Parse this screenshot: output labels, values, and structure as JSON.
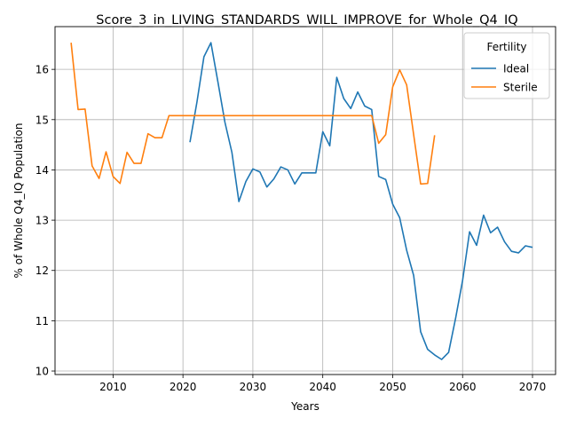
{
  "chart_data": {
    "type": "line",
    "title": "Score_3_in_LIVING_STANDARDS_WILL_IMPROVE_for_Whole_Q4_IQ",
    "xlabel": "Years",
    "ylabel": "% of Whole Q4_IQ Population",
    "xlim": [
      2001.7,
      2073.3
    ],
    "ylim": [
      9.93,
      16.85
    ],
    "xticks": [
      2010,
      2020,
      2030,
      2040,
      2050,
      2060,
      2070
    ],
    "yticks": [
      10,
      11,
      12,
      13,
      14,
      15,
      16
    ],
    "grid": true,
    "legend": {
      "title": "Fertility",
      "placement": "top-right"
    },
    "series": [
      {
        "name": "Ideal",
        "color": "#1f77b4",
        "x": [
          2021,
          2022,
          2023,
          2024,
          2025,
          2026,
          2027,
          2028,
          2029,
          2030,
          2031,
          2032,
          2033,
          2034,
          2035,
          2036,
          2037,
          2038,
          2039,
          2040,
          2041,
          2042,
          2043,
          2044,
          2045,
          2046,
          2047,
          2048,
          2049,
          2050,
          2051,
          2052,
          2053,
          2054,
          2055,
          2056,
          2057,
          2058,
          2059,
          2060,
          2061,
          2062,
          2063,
          2064,
          2065,
          2066,
          2067,
          2068,
          2069,
          2070
        ],
        "y": [
          14.55,
          15.35,
          16.25,
          16.53,
          15.75,
          14.95,
          14.35,
          13.37,
          13.77,
          14.02,
          13.96,
          13.66,
          13.82,
          14.06,
          14.0,
          13.72,
          13.94,
          13.94,
          13.94,
          14.76,
          14.48,
          15.84,
          15.42,
          15.22,
          15.55,
          15.27,
          15.2,
          13.87,
          13.81,
          13.32,
          13.05,
          12.4,
          11.9,
          10.78,
          10.43,
          10.32,
          10.23,
          10.37,
          11.05,
          11.8,
          12.77,
          12.5,
          13.1,
          12.75,
          12.86,
          12.57,
          12.38,
          12.35,
          12.49,
          12.46
        ]
      },
      {
        "name": "Sterile",
        "color": "#ff7f0e",
        "x": [
          2004,
          2005,
          2006,
          2007,
          2008,
          2009,
          2010,
          2011,
          2012,
          2013,
          2014,
          2015,
          2016,
          2017,
          2018,
          2019,
          2020,
          2021,
          2022,
          2023,
          2024,
          2025,
          2026,
          2027,
          2028,
          2029,
          2030,
          2031,
          2032,
          2033,
          2034,
          2035,
          2036,
          2037,
          2038,
          2039,
          2040,
          2041,
          2042,
          2043,
          2044,
          2045,
          2046,
          2047,
          2048,
          2049,
          2050,
          2051,
          2052,
          2053,
          2054,
          2055,
          2056
        ],
        "y": [
          16.53,
          15.2,
          15.21,
          14.08,
          13.83,
          14.36,
          13.87,
          13.73,
          14.35,
          14.13,
          14.13,
          14.72,
          14.64,
          14.64,
          15.08,
          15.08,
          15.08,
          15.08,
          15.08,
          15.08,
          15.08,
          15.08,
          15.08,
          15.08,
          15.08,
          15.08,
          15.08,
          15.08,
          15.08,
          15.08,
          15.08,
          15.08,
          15.08,
          15.08,
          15.08,
          15.08,
          15.08,
          15.08,
          15.08,
          15.08,
          15.08,
          15.08,
          15.08,
          15.08,
          14.53,
          14.7,
          15.65,
          15.99,
          15.69,
          14.7,
          13.72,
          13.73,
          14.69
        ]
      }
    ]
  }
}
